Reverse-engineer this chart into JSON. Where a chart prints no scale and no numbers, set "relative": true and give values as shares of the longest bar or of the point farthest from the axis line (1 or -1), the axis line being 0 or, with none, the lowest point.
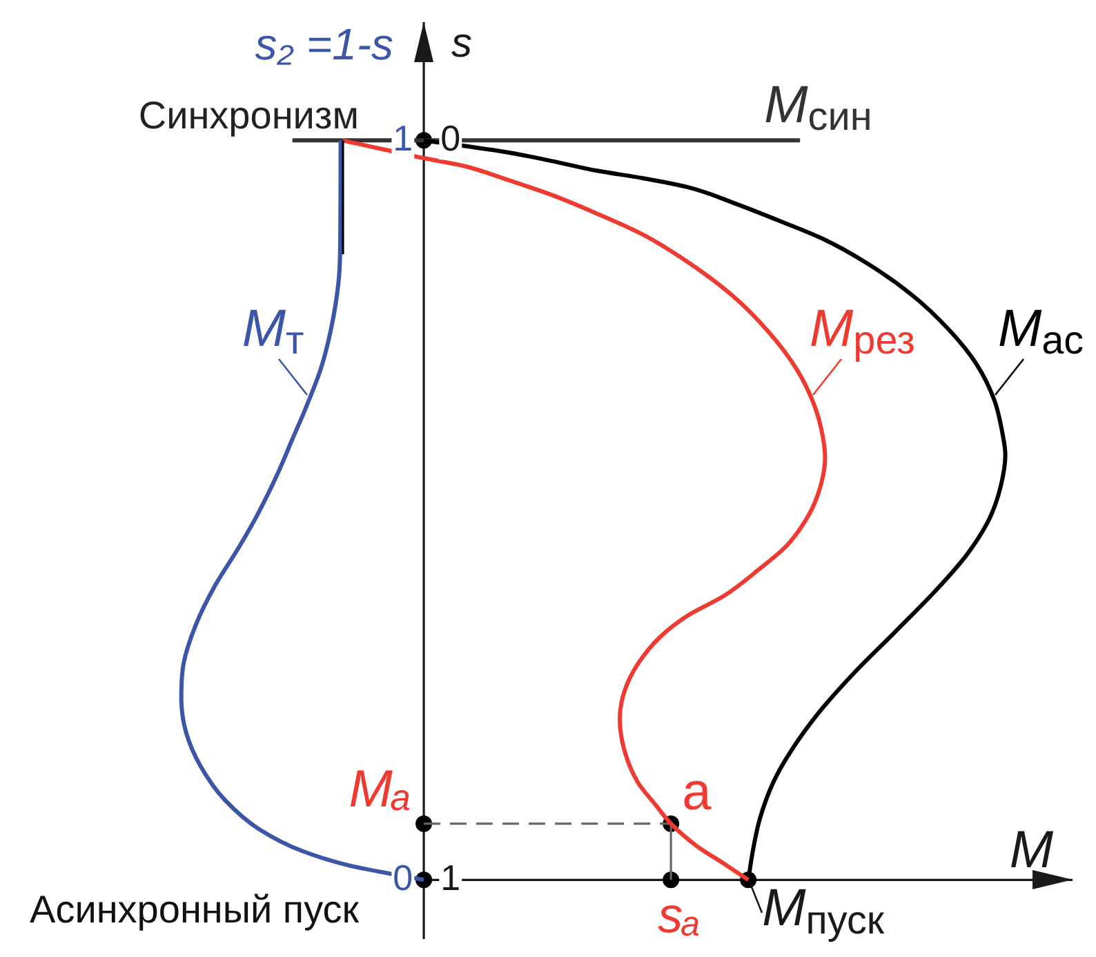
{
  "chart_data": {
    "type": "line",
    "orientation": "horizontal",
    "relative": true,
    "xlabel": "M",
    "ylabel": "s",
    "y2label": "s₂ =1-s",
    "ylim": [
      1.08,
      -0.16
    ],
    "yticks": [
      0,
      1
    ],
    "y2lim": [
      -0.08,
      1.16
    ],
    "y2ticks": [
      0,
      1
    ],
    "annotations": [
      {
        "text": "Синхронизм",
        "x": 0,
        "y": 0
      },
      {
        "text": "Асинхронный пуск",
        "x": 0,
        "y": 1
      },
      {
        "text": "Mₐ",
        "x": 0,
        "y": 0.924
      },
      {
        "text": "a",
        "x": 0.425,
        "y": 0.924
      },
      {
        "text": "sₐ",
        "x": 0.425,
        "y": 1
      },
      {
        "text": "M$_{пуск}$",
        "x": 0.558,
        "y": 1
      }
    ],
    "series": [
      {
        "color": "#000000",
        "x": [
          0,
          0.154
        ],
        "values": [
          -0.139,
          -0.139
        ]
      },
      {
        "name": "M$_{т}$",
        "color": "#3b56a6",
        "x": [
          0,
          0.154,
          0.194,
          0.253,
          0.306,
          0.358,
          0.404,
          0.45,
          0.503,
          0.549,
          0.602,
          0.655,
          0.707,
          0.754,
          0.8,
          0.846,
          0.892,
          0.931,
          0.961,
          0.981,
          1
        ],
        "values": [
          -0.143,
          -0.144,
          -0.147,
          -0.159,
          -0.176,
          -0.201,
          -0.226,
          -0.251,
          -0.284,
          -0.317,
          -0.359,
          -0.392,
          -0.413,
          -0.417,
          -0.409,
          -0.384,
          -0.342,
          -0.284,
          -0.209,
          -0.126,
          0
        ]
      },
      {
        "name": "M$_{рез}$",
        "color": "#ee3a30",
        "x": [
          0,
          0.012,
          0.024,
          0.034,
          0.053,
          0.074,
          0.099,
          0.127,
          0.164,
          0.21,
          0.259,
          0.308,
          0.357,
          0.4,
          0.43,
          0.468,
          0.505,
          0.548,
          0.579,
          0.616,
          0.643,
          0.671,
          0.708,
          0.745,
          0.782,
          0.825,
          0.868,
          0.899,
          0.924,
          0.954,
          0.978,
          1
        ],
        "values": [
          -0.14,
          -0.07,
          0,
          0.066,
          0.143,
          0.221,
          0.298,
          0.376,
          0.453,
          0.531,
          0.593,
          0.64,
          0.671,
          0.686,
          0.69,
          0.682,
          0.663,
          0.624,
          0.578,
          0.516,
          0.453,
          0.407,
          0.368,
          0.345,
          0.337,
          0.345,
          0.368,
          0.399,
          0.425,
          0.469,
          0.516,
          0.558
        ]
      },
      {
        "name": "M$_{ас}$",
        "color": "#000000",
        "x": [
          0,
          0.016,
          0.028,
          0.041,
          0.051,
          0.063,
          0.084,
          0.108,
          0.133,
          0.167,
          0.21,
          0.256,
          0.302,
          0.351,
          0.4,
          0.425,
          0.468,
          0.511,
          0.56,
          0.609,
          0.665,
          0.72,
          0.775,
          0.825,
          0.868,
          0.917,
          0.96,
          1
        ],
        "values": [
          0,
          0.143,
          0.221,
          0.298,
          0.376,
          0.453,
          0.531,
          0.609,
          0.686,
          0.764,
          0.841,
          0.903,
          0.95,
          0.981,
          0.996,
          1,
          0.992,
          0.973,
          0.934,
          0.88,
          0.81,
          0.74,
          0.678,
          0.632,
          0.601,
          0.578,
          0.566,
          0.558
        ]
      },
      {
        "name": "M$_{син}$",
        "color": "#333333",
        "x": [
          0,
          0
        ],
        "values": [
          -0.226,
          0.647
        ]
      },
      {
        "color": "#666666",
        "line_style": "dashed",
        "x": [
          0.924,
          0.924
        ],
        "values": [
          0,
          0.425
        ]
      },
      {
        "color": "#666666",
        "x": [
          0.924,
          1
        ],
        "values": [
          0.425,
          0.425
        ]
      },
      {
        "type": "scatter",
        "marker": "circle",
        "color": "#000000",
        "x": [
          0,
          1,
          0.924,
          0.924,
          1,
          1
        ],
        "values": [
          0,
          0,
          0,
          0.425,
          0.425,
          0.558
        ]
      }
    ]
  }
}
